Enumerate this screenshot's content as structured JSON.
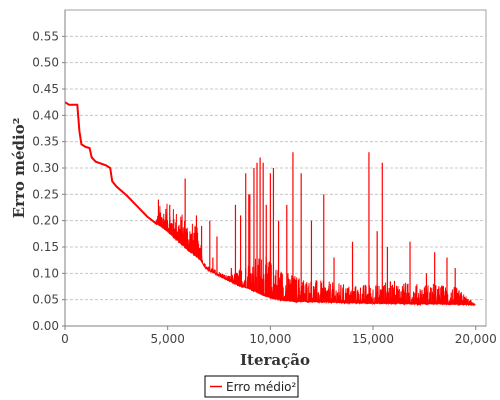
{
  "chart_data": {
    "type": "line",
    "title": "",
    "xlabel": "Iteração",
    "ylabel": "Erro médio²",
    "xlim": [
      0,
      20500
    ],
    "ylim": [
      0,
      0.6
    ],
    "xticks": [
      0,
      5000,
      10000,
      15000,
      20000
    ],
    "xtick_labels": [
      "0",
      "5,000",
      "10,000",
      "15,000",
      "20,000"
    ],
    "yticks": [
      0.0,
      0.05,
      0.1,
      0.15,
      0.2,
      0.25,
      0.3,
      0.35,
      0.4,
      0.45,
      0.5,
      0.55
    ],
    "ytick_labels": [
      "0.00",
      "0.05",
      "0.10",
      "0.15",
      "0.20",
      "0.25",
      "0.30",
      "0.35",
      "0.40",
      "0.45",
      "0.50",
      "0.55"
    ],
    "grid": true,
    "legend": "bottom-center",
    "series": [
      {
        "name": "Erro médio²",
        "color": "#ff0000",
        "baseline": {
          "x": [
            0,
            200,
            600,
            700,
            800,
            1000,
            1200,
            1300,
            1500,
            2000,
            2200,
            2300,
            2500,
            3000,
            3500,
            4000,
            4500,
            5000,
            5500,
            6000,
            6600,
            6800,
            7000,
            7500,
            8000,
            8500,
            9000,
            9500,
            10000,
            10500,
            11000,
            12000,
            13000,
            14000,
            15000,
            16000,
            17000,
            18000,
            19000,
            20000
          ],
          "y": [
            0.425,
            0.42,
            0.42,
            0.37,
            0.345,
            0.34,
            0.338,
            0.32,
            0.312,
            0.305,
            0.3,
            0.275,
            0.265,
            0.248,
            0.228,
            0.208,
            0.193,
            0.178,
            0.16,
            0.142,
            0.125,
            0.112,
            0.105,
            0.095,
            0.085,
            0.075,
            0.07,
            0.06,
            0.052,
            0.048,
            0.046,
            0.045,
            0.044,
            0.043,
            0.042,
            0.042,
            0.041,
            0.041,
            0.04,
            0.04
          ]
        },
        "noise_envelope": {
          "x": [
            0,
            4400,
            4600,
            5000,
            5500,
            6000,
            6600,
            6700,
            8000,
            8800,
            9500,
            10000,
            10500,
            11000,
            12000,
            13000,
            14000,
            15000,
            16000,
            17000,
            18000,
            19000,
            19500,
            20000
          ],
          "amp": [
            0,
            0,
            0.04,
            0.055,
            0.06,
            0.065,
            0.055,
            0.008,
            0.01,
            0.05,
            0.08,
            0.075,
            0.065,
            0.055,
            0.045,
            0.04,
            0.035,
            0.04,
            0.045,
            0.04,
            0.04,
            0.035,
            0.02,
            0
          ]
        },
        "spikes": [
          {
            "x": 4550,
            "y": 0.24
          },
          {
            "x": 5100,
            "y": 0.23
          },
          {
            "x": 5850,
            "y": 0.28
          },
          {
            "x": 6400,
            "y": 0.21
          },
          {
            "x": 6650,
            "y": 0.19
          },
          {
            "x": 7050,
            "y": 0.2
          },
          {
            "x": 7200,
            "y": 0.13
          },
          {
            "x": 7400,
            "y": 0.17
          },
          {
            "x": 8100,
            "y": 0.11
          },
          {
            "x": 8300,
            "y": 0.23
          },
          {
            "x": 8550,
            "y": 0.21
          },
          {
            "x": 8800,
            "y": 0.29
          },
          {
            "x": 8950,
            "y": 0.25
          },
          {
            "x": 9000,
            "y": 0.25
          },
          {
            "x": 9200,
            "y": 0.3
          },
          {
            "x": 9350,
            "y": 0.31
          },
          {
            "x": 9500,
            "y": 0.32
          },
          {
            "x": 9650,
            "y": 0.31
          },
          {
            "x": 9800,
            "y": 0.23
          },
          {
            "x": 10000,
            "y": 0.29
          },
          {
            "x": 10150,
            "y": 0.3
          },
          {
            "x": 10400,
            "y": 0.2
          },
          {
            "x": 10800,
            "y": 0.23
          },
          {
            "x": 11100,
            "y": 0.33
          },
          {
            "x": 11500,
            "y": 0.29
          },
          {
            "x": 12000,
            "y": 0.2
          },
          {
            "x": 12600,
            "y": 0.25
          },
          {
            "x": 13100,
            "y": 0.13
          },
          {
            "x": 14000,
            "y": 0.16
          },
          {
            "x": 14800,
            "y": 0.33
          },
          {
            "x": 15200,
            "y": 0.18
          },
          {
            "x": 15450,
            "y": 0.31
          },
          {
            "x": 15700,
            "y": 0.15
          },
          {
            "x": 16500,
            "y": 0.08
          },
          {
            "x": 16800,
            "y": 0.16
          },
          {
            "x": 17600,
            "y": 0.1
          },
          {
            "x": 18000,
            "y": 0.14
          },
          {
            "x": 18600,
            "y": 0.13
          },
          {
            "x": 19000,
            "y": 0.11
          },
          {
            "x": 19300,
            "y": 0.06
          }
        ]
      }
    ]
  }
}
